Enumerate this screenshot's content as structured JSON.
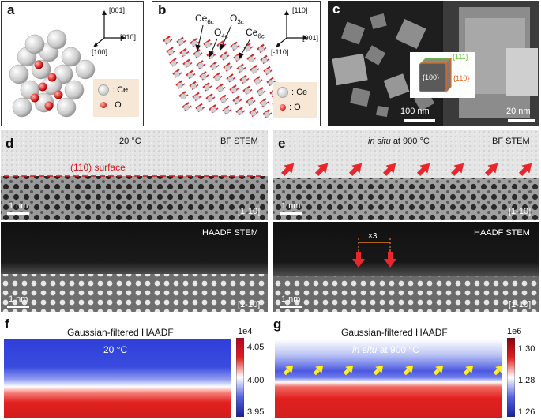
{
  "panels": {
    "a": {
      "label": "a",
      "axes": {
        "up": "[001]",
        "right": "[010]",
        "diag": "[100]"
      },
      "legend": {
        "ce": ": Ce",
        "o": ": O"
      }
    },
    "b": {
      "label": "b",
      "annotations": {
        "ce6c_left": "Ce",
        "ce6c_left_sub": "6c",
        "o3c": "O",
        "o3c_sub": "3c",
        "o4c": "O",
        "o4c_sub": "4c",
        "ce6c_right": "Ce",
        "ce6c_right_sub": "6c"
      },
      "axes": {
        "up": "[110]",
        "right": "[001]",
        "diag": "[-110]"
      },
      "legend": {
        "ce": ": Ce",
        "o": ": O"
      }
    },
    "c": {
      "label": "c",
      "facets": {
        "f100": "{100}",
        "f111": "{111}",
        "f110": "{110}"
      },
      "scalebars": {
        "left": "100 nm",
        "right": "20 nm"
      }
    },
    "d": {
      "label": "d",
      "temperature": "20 °C",
      "bf_label": "BF STEM",
      "surface_label": "(110) surface",
      "scalebar_bf": "1 nm",
      "direction_bf": "[1-10]",
      "haadf_label": "HAADF STEM",
      "scalebar_haadf": "1 nm",
      "direction_haadf": "[1-10]"
    },
    "e": {
      "label": "e",
      "temperature_italic": "in situ",
      "temperature_rest": "at 900 °C",
      "bf_label": "BF STEM",
      "scalebar_bf": "1 nm",
      "direction_bf": "[1-10]",
      "haadf_label": "HAADF STEM",
      "period_label": "×3",
      "scalebar_haadf": "1 nm",
      "direction_haadf": "[1-10]"
    },
    "f": {
      "label": "f",
      "title": "Gaussian-filtered HAADF",
      "temperature": "20 °C",
      "colorbar": {
        "exponent": "1e4",
        "ticks": [
          "4.05",
          "4.00",
          "3.95"
        ]
      }
    },
    "g": {
      "label": "g",
      "title": "Gaussian-filtered HAADF",
      "temperature_italic": "in situ",
      "temperature_rest": "at 900 °C",
      "colorbar": {
        "exponent": "1e6",
        "ticks": [
          "1.30",
          "1.28",
          "1.26"
        ]
      }
    }
  },
  "colors": {
    "red_arrow": "#e8262c",
    "orange_marker": "#e87a1a",
    "yellow_arrow": "#ffee22",
    "dashed_line": "#d0191f",
    "facet_green": "#5fc42a",
    "facet_orange": "#e8651a"
  }
}
